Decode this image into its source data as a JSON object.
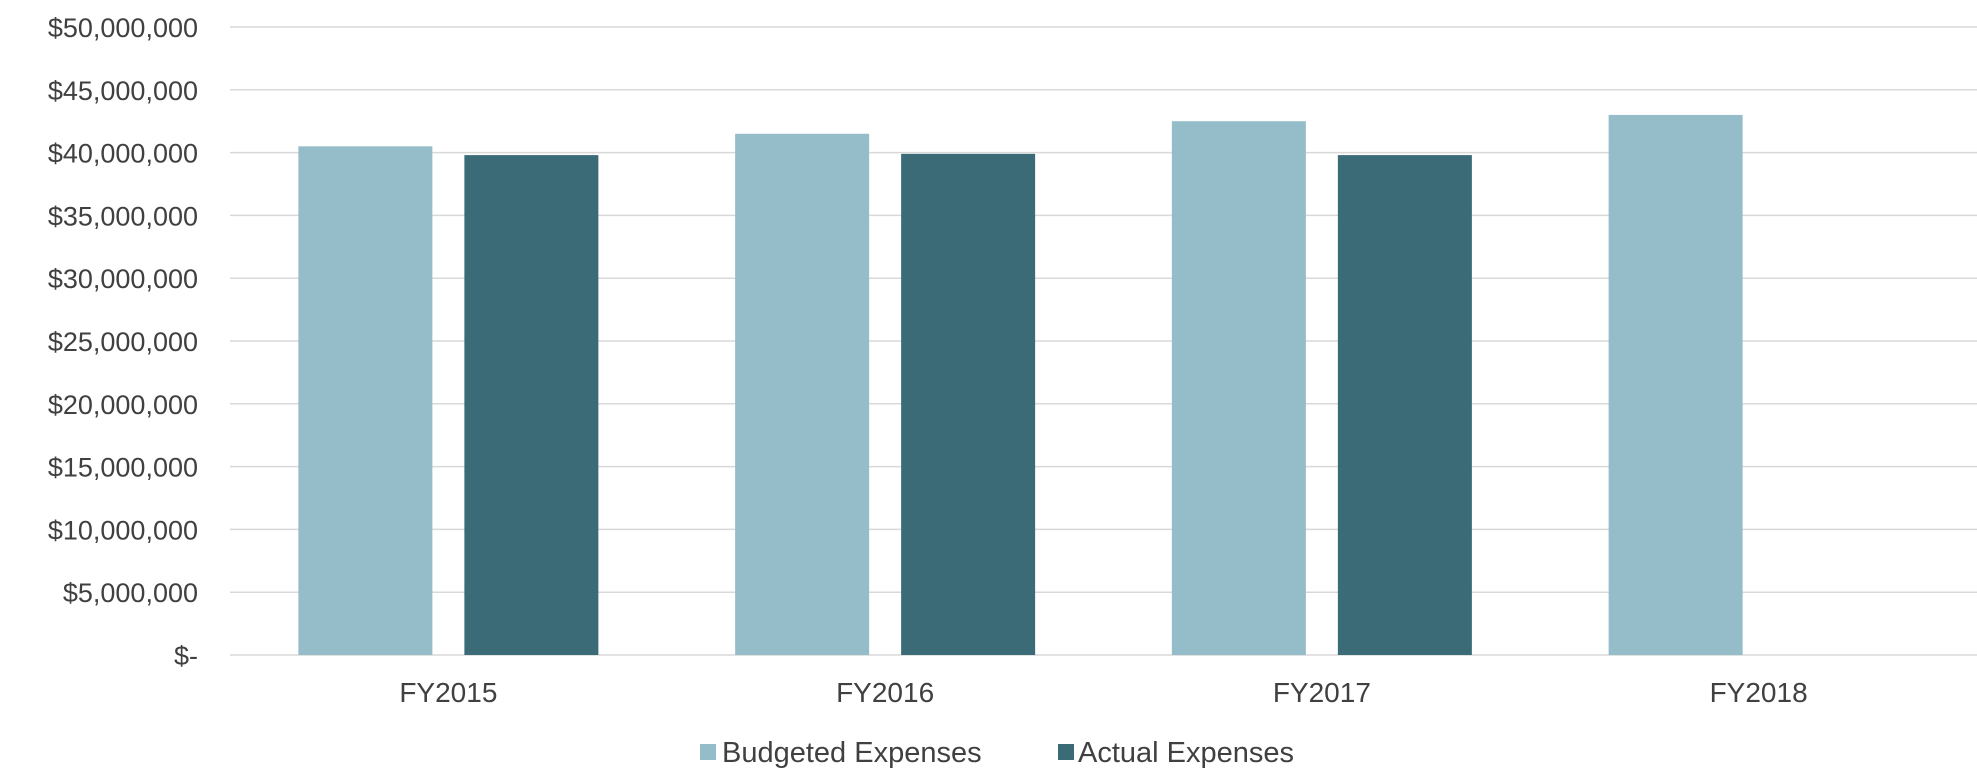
{
  "chart_data": {
    "type": "bar",
    "title": "",
    "xlabel": "",
    "ylabel": "",
    "categories": [
      "FY2015",
      "FY2016",
      "FY2017",
      "FY2018"
    ],
    "series": [
      {
        "name": "Budgeted Expenses",
        "color": "#95bdc9",
        "values": [
          40500000,
          41500000,
          42500000,
          43000000
        ]
      },
      {
        "name": "Actual Expenses",
        "color": "#3b6b77",
        "values": [
          39800000,
          39900000,
          39800000,
          null
        ]
      }
    ],
    "ylim": [
      0,
      50000000
    ],
    "yticks": [
      0,
      5000000,
      10000000,
      15000000,
      20000000,
      25000000,
      30000000,
      35000000,
      40000000,
      45000000,
      50000000
    ],
    "ytick_labels": [
      "$-",
      "$5,000,000",
      "$10,000,000",
      "$15,000,000",
      "$20,000,000",
      "$25,000,000",
      "$30,000,000",
      "$35,000,000",
      "$40,000,000",
      "$45,000,000",
      "$50,000,000"
    ],
    "grid": true,
    "legend_position": "bottom"
  }
}
